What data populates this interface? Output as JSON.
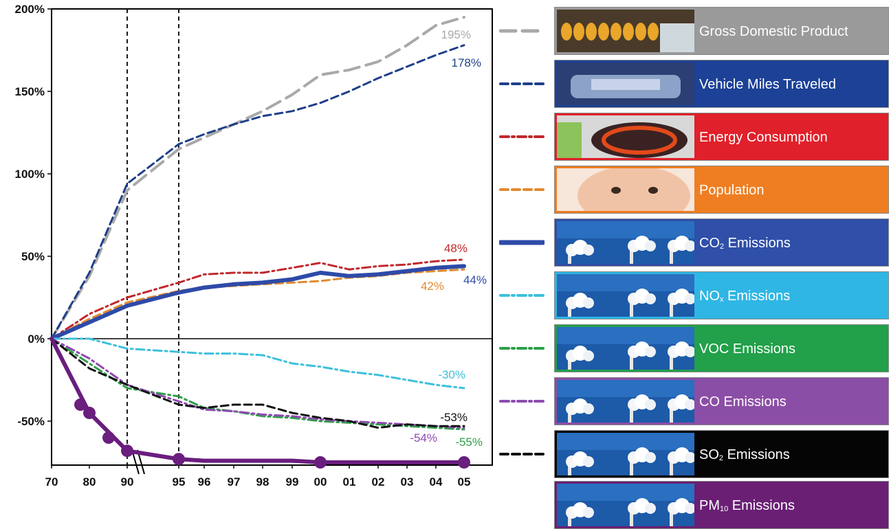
{
  "chart_data": {
    "type": "line",
    "x": [
      "70",
      "80",
      "90",
      "95",
      "96",
      "97",
      "98",
      "99",
      "00",
      "01",
      "02",
      "03",
      "04",
      "05"
    ],
    "x_years": [
      1970,
      1980,
      1990,
      1995,
      1996,
      1997,
      1998,
      1999,
      2000,
      2001,
      2002,
      2003,
      2004,
      2005
    ],
    "y_ticks": [
      "200%",
      "150%",
      "100%",
      "50%",
      "0%",
      "-50%"
    ],
    "ylim": [
      -75,
      200
    ],
    "reference_lines_at": [
      "90",
      "95"
    ],
    "series": [
      {
        "name": "Gross Domestic Product",
        "color": "#a9a9a9",
        "style": "long-dash",
        "end_label": "195%",
        "values": [
          0,
          38,
          90,
          115,
          122,
          130,
          138,
          148,
          160,
          163,
          168,
          178,
          190,
          195
        ]
      },
      {
        "name": "Vehicle Miles Traveled",
        "color": "#1f3f8a",
        "style": "dash",
        "end_label": "178%",
        "values": [
          0,
          40,
          94,
          118,
          124,
          130,
          135,
          138,
          143,
          150,
          158,
          165,
          172,
          178
        ]
      },
      {
        "name": "Energy Consumption",
        "color": "#c0282b",
        "style": "dash-dot",
        "end_label": "48%",
        "values": [
          0,
          15,
          25,
          34,
          39,
          40,
          40,
          43,
          46,
          42,
          44,
          45,
          47,
          48
        ]
      },
      {
        "name": "Population",
        "color": "#e08a30",
        "style": "dash",
        "end_label": "42%",
        "values": [
          0,
          12,
          22,
          29,
          31,
          32,
          33,
          34,
          35,
          37,
          38,
          40,
          41,
          42
        ]
      },
      {
        "name": "CO₂ Emissions",
        "color": "#2e4aa8",
        "style": "solid-thick",
        "end_label": "44%",
        "values": [
          0,
          10,
          20,
          28,
          31,
          33,
          34,
          36,
          40,
          38,
          39,
          41,
          43,
          44
        ]
      },
      {
        "name": "NOₓ Emissions",
        "color": "#3cc0dc",
        "style": "dash-dot",
        "end_label": "-30%",
        "values": [
          0,
          0,
          -6,
          -8,
          -9,
          -9,
          -10,
          -15,
          -17,
          -20,
          -22,
          -25,
          -28,
          -30
        ]
      },
      {
        "name": "VOC Emissions",
        "color": "#2e9e48",
        "style": "dash-dot",
        "end_label": "-55%",
        "values": [
          0,
          -15,
          -30,
          -35,
          -42,
          -44,
          -47,
          -48,
          -50,
          -51,
          -52,
          -53,
          -54,
          -55
        ]
      },
      {
        "name": "CO Emissions",
        "color": "#8e4bb0",
        "style": "dash-dot",
        "end_label": "-54%",
        "values": [
          0,
          -12,
          -28,
          -38,
          -43,
          -44,
          -46,
          -47,
          -49,
          -50,
          -51,
          -52,
          -53,
          -54
        ]
      },
      {
        "name": "SO₂ Emissions",
        "color": "#111111",
        "style": "dash",
        "end_label": "-53%",
        "values": [
          0,
          -18,
          -28,
          -40,
          -42,
          -40,
          -40,
          -45,
          -48,
          -50,
          -54,
          -52,
          -53,
          -53
        ]
      },
      {
        "name": "PM₁₀ Emissions",
        "color": "#6a1e7e",
        "style": "solid-thick-markers",
        "end_label": "",
        "values": [
          0,
          -45,
          -68,
          -73,
          -74,
          -74,
          -74,
          -74,
          -75,
          -75,
          -75,
          -75,
          -75,
          -75
        ]
      }
    ]
  },
  "legend": [
    {
      "prefix": "Gross Domestic Product",
      "sub": "",
      "suffix": "",
      "bg": "#9a9a9a",
      "image": "gdp-photo-icon"
    },
    {
      "prefix": "Vehicle Miles Traveled",
      "sub": "",
      "suffix": "",
      "bg": "#1c4196",
      "image": "vehicle-photo-icon"
    },
    {
      "prefix": "Energy Consumption",
      "sub": "",
      "suffix": "",
      "bg": "#e0202a",
      "image": "stove-photo-icon"
    },
    {
      "prefix": "Population",
      "sub": "",
      "suffix": "",
      "bg": "#ef7e22",
      "image": "baby-photo-icon"
    },
    {
      "prefix": "CO",
      "sub": "2",
      "suffix": " Emissions",
      "bg": "#2f4fa8",
      "image": "smokestack-photo-icon"
    },
    {
      "prefix": "NO",
      "sub": "x",
      "suffix": " Emissions",
      "bg": "#2fb6e4",
      "image": "smokestack-photo-icon"
    },
    {
      "prefix": "VOC Emissions",
      "sub": "",
      "suffix": "",
      "bg": "#22a04a",
      "image": "smokestack-photo-icon"
    },
    {
      "prefix": "CO Emissions",
      "sub": "",
      "suffix": "",
      "bg": "#8b4ea6",
      "image": "smokestack-photo-icon"
    },
    {
      "prefix": "SO",
      "sub": "2",
      "suffix": " Emissions",
      "bg": "#050505",
      "image": "smokestack-photo-icon"
    },
    {
      "prefix": "PM",
      "sub": "10",
      "suffix": " Emissions",
      "bg": "#6a1f74",
      "image": "smokestack-photo-icon"
    }
  ]
}
